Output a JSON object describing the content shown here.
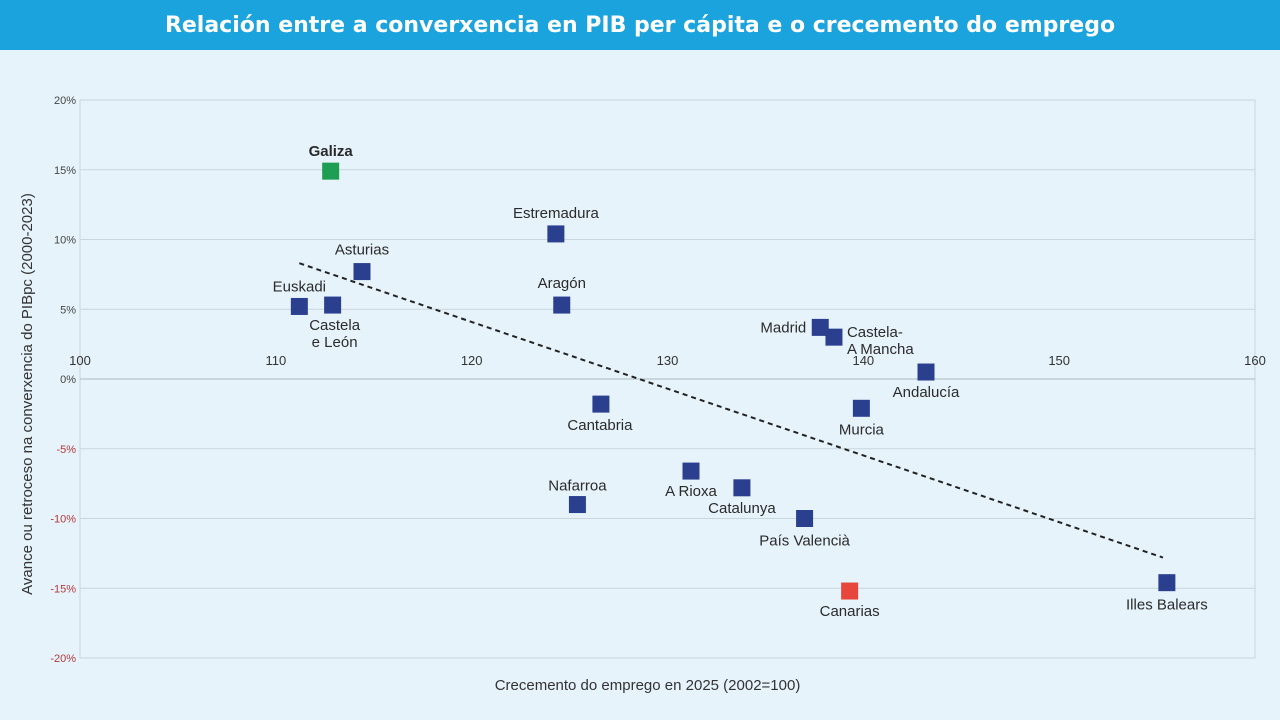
{
  "header": {
    "title": "Relación entre a converxencia en PIB per cápita e o crecemento do emprego"
  },
  "chart_data": {
    "type": "scatter",
    "xlabel": "Crecemento do emprego en 2025 (2002=100)",
    "ylabel": "Avance ou retroceso na converxencia do PIBpc (2000-2023)",
    "xlim": [
      100,
      160
    ],
    "ylim": [
      -20,
      20
    ],
    "x_ticks": [
      "100",
      "110",
      "120",
      "130",
      "140",
      "150",
      "160"
    ],
    "y_ticks": [
      "20%",
      "15%",
      "10%",
      "5%",
      "0%",
      "-5%",
      "-10%",
      "-15%",
      "-20%"
    ],
    "grid": true,
    "trendline": {
      "from": [
        111.2,
        8.3
      ],
      "to": [
        155.3,
        -12.8
      ],
      "style": "dashed"
    },
    "colors": {
      "default": "#2b3f8f",
      "highlight": "#1e9e52",
      "alert": "#e8453c"
    },
    "points": [
      {
        "name": "Galiza",
        "x": 112.8,
        "y": 14.9,
        "color": "#1e9e52",
        "bold": true
      },
      {
        "name": "Estremadura",
        "x": 124.3,
        "y": 10.4
      },
      {
        "name": "Asturias",
        "x": 114.4,
        "y": 7.7
      },
      {
        "name": "Aragón",
        "x": 124.6,
        "y": 5.3
      },
      {
        "name": "Euskadi",
        "x": 111.2,
        "y": 5.2
      },
      {
        "name": "Castela\ne León",
        "x": 112.9,
        "y": 5.3
      },
      {
        "name": "Madrid",
        "x": 137.8,
        "y": 3.7
      },
      {
        "name": "Castela-\nA Mancha",
        "x": 138.5,
        "y": 3.0
      },
      {
        "name": "Andalucía",
        "x": 143.2,
        "y": 0.5
      },
      {
        "name": "Cantabria",
        "x": 126.6,
        "y": -1.8
      },
      {
        "name": "Murcia",
        "x": 139.9,
        "y": -2.1
      },
      {
        "name": "A Rioxa",
        "x": 131.2,
        "y": -6.6
      },
      {
        "name": "Catalunya",
        "x": 133.8,
        "y": -7.8
      },
      {
        "name": "Nafarroa",
        "x": 125.4,
        "y": -9.0
      },
      {
        "name": "País Valencià",
        "x": 137.0,
        "y": -10.0
      },
      {
        "name": "Canarias",
        "x": 139.3,
        "y": -15.2,
        "color": "#e8453c"
      },
      {
        "name": "Illes Balears",
        "x": 155.5,
        "y": -14.6
      }
    ]
  }
}
